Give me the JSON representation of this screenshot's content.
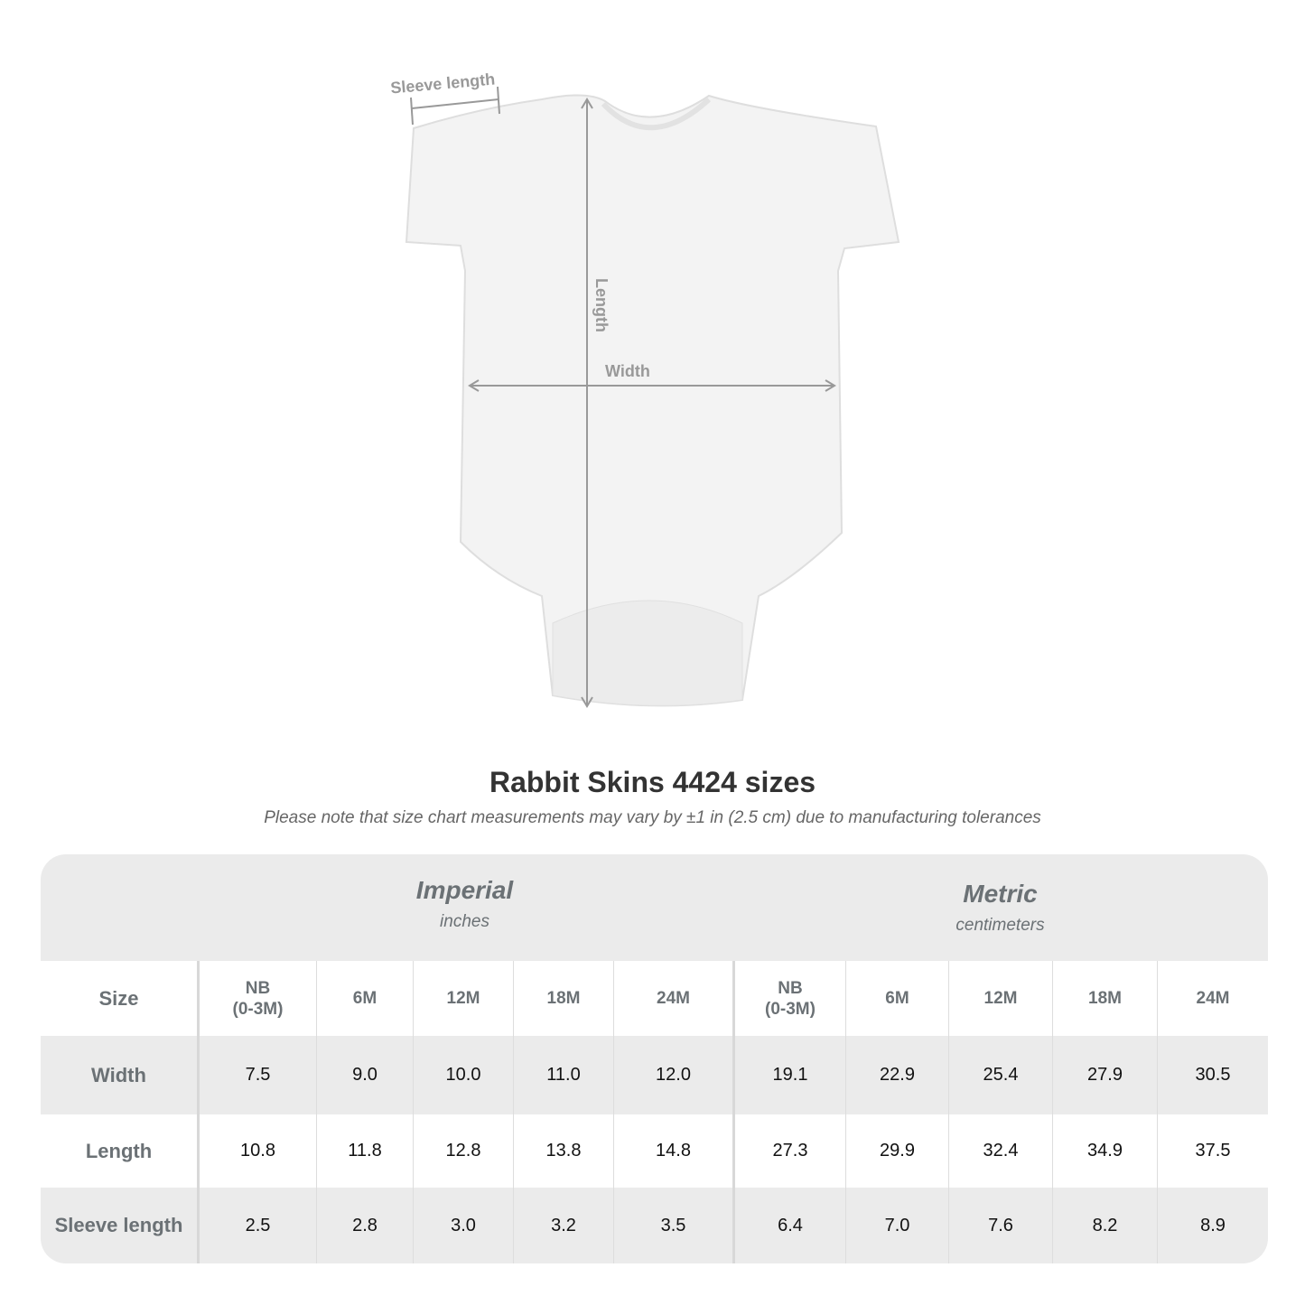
{
  "garment": {
    "labels": {
      "sleeve": "Sleeve length",
      "length": "Length",
      "width": "Width"
    }
  },
  "title": "Rabbit Skins 4424 sizes",
  "note": "Please note that size chart measurements may vary by ±1 in (2.5 cm) due to manufacturing tolerances",
  "table": {
    "groups": [
      {
        "name": "Imperial",
        "unit": "inches"
      },
      {
        "name": "Metric",
        "unit": "centimeters"
      }
    ],
    "size_label": "Size",
    "sizes": [
      "NB\n(0-3M)",
      "6M",
      "12M",
      "18M",
      "24M",
      "NB\n(0-3M)",
      "6M",
      "12M",
      "18M",
      "24M"
    ],
    "rows": [
      {
        "label": "Width",
        "values": [
          "7.5",
          "9.0",
          "10.0",
          "11.0",
          "12.0",
          "19.1",
          "22.9",
          "25.4",
          "27.9",
          "30.5"
        ]
      },
      {
        "label": "Length",
        "values": [
          "10.8",
          "11.8",
          "12.8",
          "13.8",
          "14.8",
          "27.3",
          "29.9",
          "32.4",
          "34.9",
          "37.5"
        ]
      },
      {
        "label": "Sleeve length",
        "values": [
          "2.5",
          "2.8",
          "3.0",
          "3.2",
          "3.5",
          "6.4",
          "7.0",
          "7.6",
          "8.2",
          "8.9"
        ]
      }
    ]
  }
}
